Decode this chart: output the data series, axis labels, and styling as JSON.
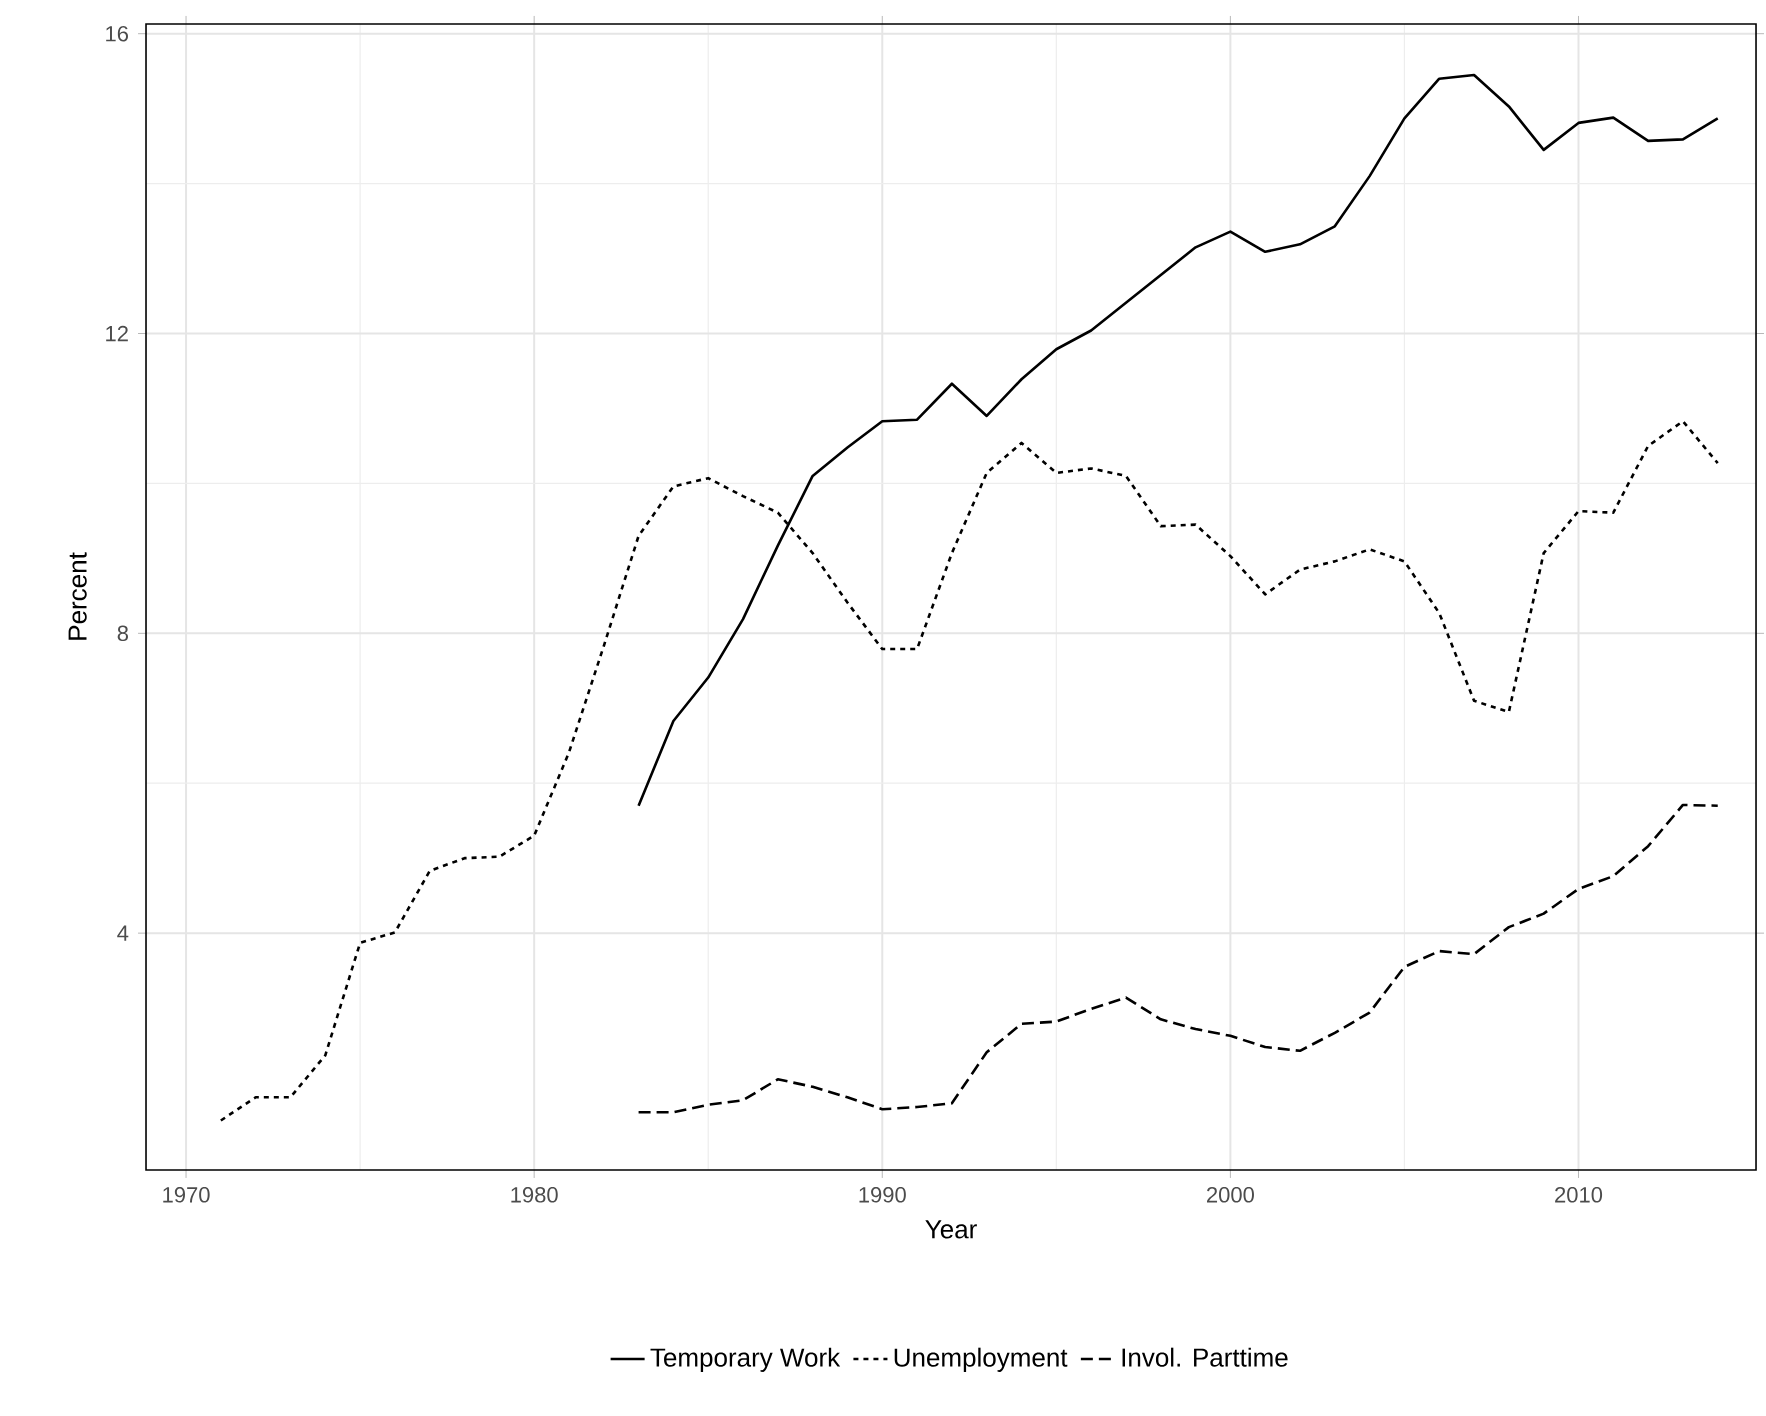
{
  "chart_data": {
    "type": "line",
    "xlabel": "Year",
    "ylabel": "Percent",
    "xlim": [
      1968.85,
      2015.1
    ],
    "ylim": [
      0.84,
      16.13
    ],
    "xticks": [
      1970,
      1980,
      1990,
      2000,
      2010
    ],
    "yticks": [
      4,
      8,
      12,
      16
    ],
    "grid": true,
    "legend": "bottom",
    "series": [
      {
        "name": "Temporary Work",
        "color": "#000000",
        "line_style": "solid",
        "x": [
          1983,
          1984,
          1985,
          1986,
          1987,
          1988,
          1989,
          1990,
          1991,
          1992,
          1993,
          1994,
          1995,
          1996,
          1997,
          1998,
          1999,
          2000,
          2001,
          2002,
          2003,
          2004,
          2005,
          2006,
          2007,
          2008,
          2009,
          2010,
          2011,
          2012,
          2013,
          2014
        ],
        "values": [
          5.7,
          6.83,
          7.41,
          8.19,
          9.17,
          10.1,
          10.48,
          10.83,
          10.85,
          11.33,
          10.9,
          11.39,
          11.79,
          12.04,
          12.41,
          12.78,
          13.15,
          13.36,
          13.09,
          13.19,
          13.43,
          14.1,
          14.87,
          15.4,
          15.45,
          15.03,
          14.45,
          14.81,
          14.88,
          14.57,
          14.59,
          14.87
        ]
      },
      {
        "name": "Unemployment",
        "color": "#000000",
        "line_style": "dotted",
        "x": [
          1971,
          1972,
          1973,
          1974,
          1975,
          1976,
          1977,
          1978,
          1979,
          1980,
          1981,
          1982,
          1983,
          1984,
          1985,
          1986,
          1987,
          1988,
          1989,
          1990,
          1991,
          1992,
          1993,
          1994,
          1995,
          1996,
          1997,
          1998,
          1999,
          2000,
          2001,
          2002,
          2003,
          2004,
          2005,
          2006,
          2007,
          2008,
          2009,
          2010,
          2011,
          2012,
          2013,
          2014
        ],
        "values": [
          1.5,
          1.81,
          1.81,
          2.37,
          3.87,
          4.01,
          4.83,
          5.0,
          5.02,
          5.3,
          6.41,
          7.83,
          9.3,
          9.96,
          10.07,
          9.83,
          9.61,
          9.07,
          8.41,
          7.79,
          7.79,
          9.07,
          10.14,
          10.54,
          10.14,
          10.2,
          10.1,
          9.43,
          9.45,
          9.03,
          8.52,
          8.85,
          8.96,
          9.12,
          8.96,
          8.27,
          7.1,
          6.95,
          9.07,
          9.63,
          9.61,
          10.5,
          10.83,
          10.27
        ]
      },
      {
        "name": "Invol. Parttime",
        "color": "#000000",
        "line_style": "dashed",
        "x": [
          1983,
          1984,
          1985,
          1986,
          1987,
          1988,
          1989,
          1990,
          1991,
          1992,
          1993,
          1994,
          1995,
          1996,
          1997,
          1998,
          1999,
          2000,
          2001,
          2002,
          2003,
          2004,
          2005,
          2006,
          2007,
          2008,
          2009,
          2010,
          2011,
          2012,
          2013,
          2014
        ],
        "values": [
          1.61,
          1.61,
          1.71,
          1.77,
          2.05,
          1.95,
          1.81,
          1.65,
          1.68,
          1.73,
          2.41,
          2.79,
          2.82,
          2.99,
          3.14,
          2.85,
          2.72,
          2.63,
          2.48,
          2.43,
          2.67,
          2.94,
          3.55,
          3.76,
          3.72,
          4.08,
          4.26,
          4.59,
          4.76,
          5.16,
          5.71,
          5.7
        ]
      }
    ]
  }
}
